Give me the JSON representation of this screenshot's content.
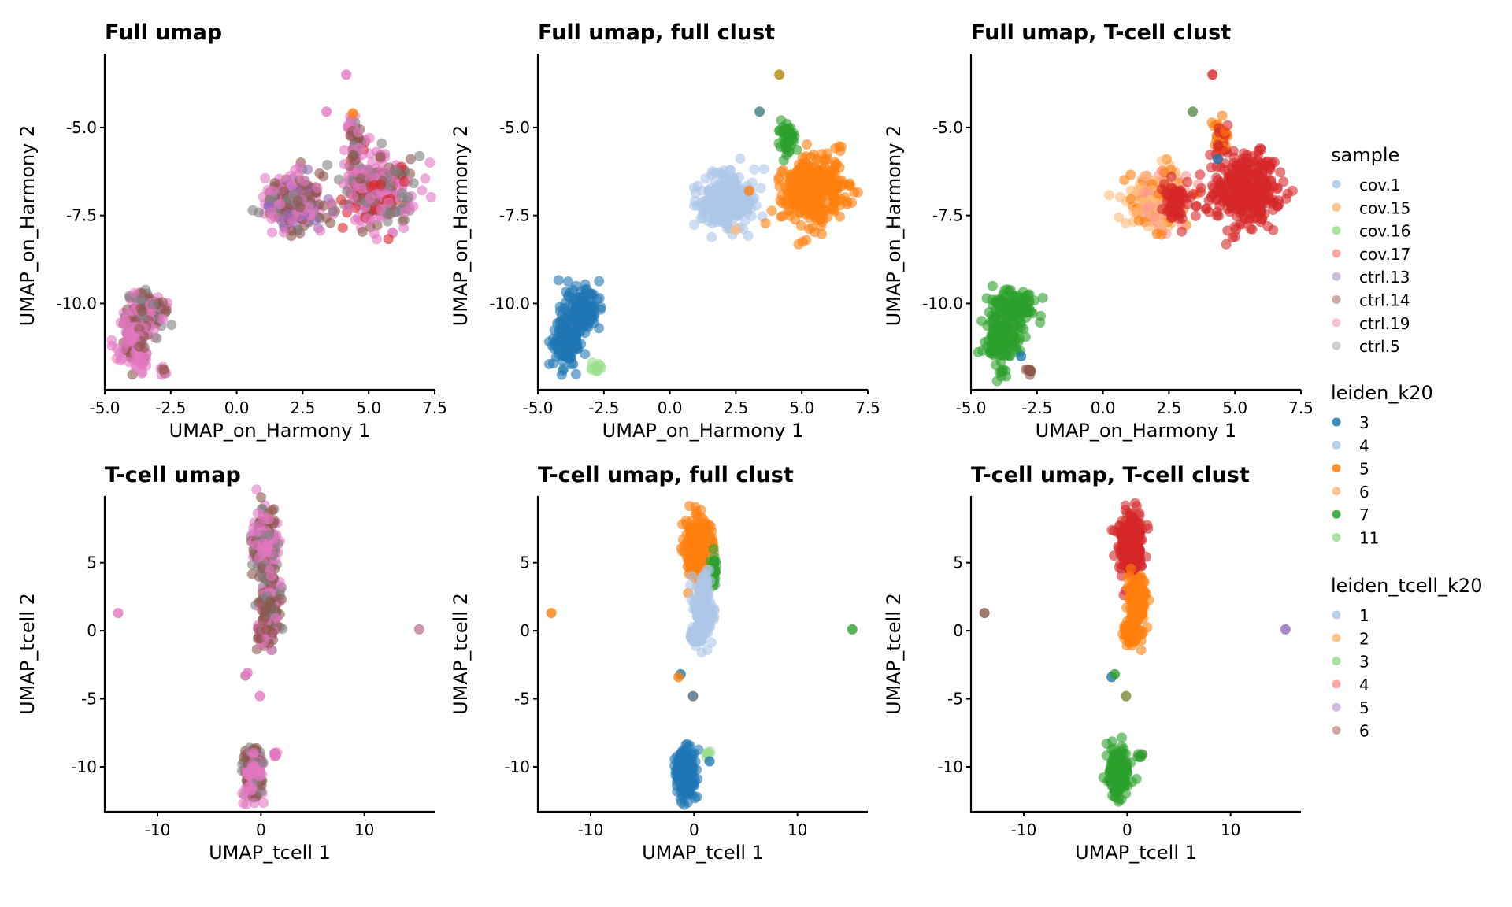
{
  "chart_data": {
    "type": "scatter",
    "figure": "2x3 grid of UMAP scatter plots with shared legend on right",
    "legends": [
      {
        "title": "sample",
        "entries": [
          {
            "label": "cov.1",
            "color": "#aec7e8"
          },
          {
            "label": "cov.15",
            "color": "#ffbb78"
          },
          {
            "label": "cov.16",
            "color": "#98df8a"
          },
          {
            "label": "cov.17",
            "color": "#ff9896"
          },
          {
            "label": "ctrl.13",
            "color": "#c5b0d5"
          },
          {
            "label": "ctrl.14",
            "color": "#c49c94"
          },
          {
            "label": "ctrl.19",
            "color": "#f7b6d2"
          },
          {
            "label": "ctrl.5",
            "color": "#c7c7c7"
          }
        ]
      },
      {
        "title": "leiden_k20",
        "entries": [
          {
            "label": "3",
            "color": "#1f77b4"
          },
          {
            "label": "4",
            "color": "#aec7e8"
          },
          {
            "label": "5",
            "color": "#ff7f0e"
          },
          {
            "label": "6",
            "color": "#ffbb78"
          },
          {
            "label": "7",
            "color": "#2ca02c"
          },
          {
            "label": "11",
            "color": "#98df8a"
          }
        ]
      },
      {
        "title": "leiden_tcell_k20",
        "entries": [
          {
            "label": "1",
            "color": "#aec7e8"
          },
          {
            "label": "2",
            "color": "#ffbb78"
          },
          {
            "label": "3",
            "color": "#98df8a"
          },
          {
            "label": "4",
            "color": "#ff9896"
          },
          {
            "label": "5",
            "color": "#c5b0d5"
          },
          {
            "label": "6",
            "color": "#c49c94"
          }
        ]
      }
    ],
    "panels": [
      {
        "title": "Full umap",
        "xlabel": "UMAP_on_Harmony 1",
        "ylabel": "UMAP_on_Harmony 2",
        "xlim": [
          -5.0,
          7.5
        ],
        "ylim": [
          -12.45,
          -2.9
        ],
        "xticks": [
          "-5.0",
          "-2.5",
          "0.0",
          "2.5",
          "5.0",
          "7.5"
        ],
        "xtick_values": [
          -5.0,
          -2.5,
          0.0,
          2.5,
          5.0,
          7.5
        ],
        "yticks": [
          "-5.0",
          "-7.5",
          "-10.0"
        ],
        "ytick_values": [
          -5.0,
          -7.5,
          -10.0
        ],
        "color_by": "sample",
        "clusters": [
          {
            "name": "left-blob",
            "cx": 2.2,
            "cy": -7.1,
            "sx": 0.55,
            "sy": 0.38,
            "n": 260,
            "colors": [
              "#8c564b",
              "#e377c2",
              "#7f7f7f",
              "#9467bd",
              "#e377c2",
              "#8c564b"
            ]
          },
          {
            "name": "right-blob",
            "cx": 5.3,
            "cy": -6.8,
            "sx": 0.65,
            "sy": 0.5,
            "n": 320,
            "colors": [
              "#8c564b",
              "#e377c2",
              "#e377c2",
              "#7f7f7f",
              "#e377c2",
              "#d62728"
            ]
          },
          {
            "name": "top-spur",
            "cx": 4.45,
            "cy": -5.3,
            "sx": 0.15,
            "sy": 0.3,
            "n": 40,
            "colors": [
              "#8c564b",
              "#e377c2",
              "#7f7f7f"
            ]
          },
          {
            "name": "bottom-blob-top",
            "cx": -3.4,
            "cy": -10.2,
            "sx": 0.4,
            "sy": 0.3,
            "n": 140,
            "colors": [
              "#e377c2",
              "#8c564b",
              "#e377c2",
              "#7f7f7f"
            ]
          },
          {
            "name": "bottom-blob-mid",
            "cx": -3.9,
            "cy": -11.1,
            "sx": 0.3,
            "sy": 0.35,
            "n": 120,
            "colors": [
              "#8c564b",
              "#e377c2",
              "#e377c2"
            ]
          },
          {
            "name": "bottom-tail",
            "cx": -2.8,
            "cy": -11.9,
            "sx": 0.08,
            "sy": 0.06,
            "n": 8,
            "colors": [
              "#e377c2",
              "#8c564b"
            ]
          }
        ],
        "outliers": [
          {
            "x": 4.15,
            "y": -3.5,
            "color": "#e377c2"
          },
          {
            "x": 3.4,
            "y": -4.55,
            "color": "#e377c2"
          },
          {
            "x": 4.4,
            "y": -4.6,
            "color": "#ff7f0e"
          }
        ]
      },
      {
        "title": "Full umap, full clust",
        "xlabel": "UMAP_on_Harmony 1",
        "ylabel": "UMAP_on_Harmony 2",
        "xlim": [
          -5.0,
          7.5
        ],
        "ylim": [
          -12.45,
          -2.9
        ],
        "xticks": [
          "-5.0",
          "-2.5",
          "0.0",
          "2.5",
          "5.0",
          "7.5"
        ],
        "xtick_values": [
          -5.0,
          -2.5,
          0.0,
          2.5,
          5.0,
          7.5
        ],
        "yticks": [
          "-5.0",
          "-7.5",
          "-10.0"
        ],
        "ytick_values": [
          -5.0,
          -7.5,
          -10.0
        ],
        "color_by": "leiden_k20",
        "clusters": [
          {
            "name": "cluster-4",
            "cx": 2.2,
            "cy": -7.1,
            "sx": 0.55,
            "sy": 0.38,
            "n": 260,
            "colors": [
              "#aec7e8"
            ]
          },
          {
            "name": "cluster-5",
            "cx": 5.4,
            "cy": -6.8,
            "sx": 0.6,
            "sy": 0.5,
            "n": 320,
            "colors": [
              "#ff7f0e"
            ]
          },
          {
            "name": "cluster-7",
            "cx": 4.45,
            "cy": -5.3,
            "sx": 0.15,
            "sy": 0.3,
            "n": 45,
            "colors": [
              "#2ca02c"
            ]
          },
          {
            "name": "cluster-3a",
            "cx": -3.4,
            "cy": -10.2,
            "sx": 0.4,
            "sy": 0.3,
            "n": 140,
            "colors": [
              "#1f77b4"
            ]
          },
          {
            "name": "cluster-3b",
            "cx": -3.9,
            "cy": -11.1,
            "sx": 0.3,
            "sy": 0.35,
            "n": 120,
            "colors": [
              "#1f77b4"
            ]
          },
          {
            "name": "cluster-11",
            "cx": -2.8,
            "cy": -11.85,
            "sx": 0.1,
            "sy": 0.08,
            "n": 10,
            "colors": [
              "#98df8a"
            ]
          }
        ],
        "outliers": [
          {
            "x": 4.15,
            "y": -3.5,
            "color": "#b5860d"
          },
          {
            "x": 3.4,
            "y": -4.55,
            "color": "#3f7f7f"
          },
          {
            "x": 3.0,
            "y": -6.8,
            "color": "#ff7f0e"
          },
          {
            "x": 2.5,
            "y": -7.9,
            "color": "#ffbb78"
          }
        ]
      },
      {
        "title": "Full umap, T-cell clust",
        "xlabel": "UMAP_on_Harmony 1",
        "ylabel": "UMAP_on_Harmony 2",
        "xlim": [
          -5.0,
          7.5
        ],
        "ylim": [
          -12.45,
          -2.9
        ],
        "xticks": [
          "-5.0",
          "-2.5",
          "0.0",
          "2.5",
          "5.0",
          "7.5"
        ],
        "xtick_values": [
          -5.0,
          -2.5,
          0.0,
          2.5,
          5.0,
          7.5
        ],
        "yticks": [
          "-5.0",
          "-7.5",
          "-10.0"
        ],
        "ytick_values": [
          -5.0,
          -7.5,
          -10.0
        ],
        "color_by": "leiden_tcell_k20",
        "clusters": [
          {
            "name": "cluster-2",
            "cx": 2.0,
            "cy": -7.1,
            "sx": 0.55,
            "sy": 0.38,
            "n": 240,
            "colors": [
              "#ff9896",
              "#ff7f0e",
              "#ffbb78"
            ]
          },
          {
            "name": "cluster-4-left",
            "cx": 2.8,
            "cy": -7.1,
            "sx": 0.35,
            "sy": 0.35,
            "n": 60,
            "colors": [
              "#d62728"
            ]
          },
          {
            "name": "cluster-4",
            "cx": 5.4,
            "cy": -6.8,
            "sx": 0.6,
            "sy": 0.5,
            "n": 320,
            "colors": [
              "#d62728"
            ]
          },
          {
            "name": "spur",
            "cx": 4.45,
            "cy": -5.3,
            "sx": 0.15,
            "sy": 0.3,
            "n": 40,
            "colors": [
              "#d62728",
              "#ff7f0e"
            ]
          },
          {
            "name": "cluster-3a",
            "cx": -3.4,
            "cy": -10.2,
            "sx": 0.4,
            "sy": 0.3,
            "n": 140,
            "colors": [
              "#2ca02c"
            ]
          },
          {
            "name": "cluster-3b",
            "cx": -3.9,
            "cy": -11.1,
            "sx": 0.3,
            "sy": 0.35,
            "n": 120,
            "colors": [
              "#2ca02c"
            ]
          },
          {
            "name": "cluster-6",
            "cx": -2.75,
            "cy": -11.9,
            "sx": 0.07,
            "sy": 0.06,
            "n": 8,
            "colors": [
              "#8c564b"
            ]
          }
        ],
        "outliers": [
          {
            "x": 4.15,
            "y": -3.5,
            "color": "#d62728"
          },
          {
            "x": 3.4,
            "y": -4.55,
            "color": "#5a8a4a"
          },
          {
            "x": 4.35,
            "y": -5.9,
            "color": "#1f77b4"
          },
          {
            "x": -3.1,
            "y": -11.5,
            "color": "#1f77b4"
          }
        ]
      },
      {
        "title": "T-cell umap",
        "xlabel": "UMAP_tcell 1",
        "ylabel": "UMAP_tcell 2",
        "xlim": [
          -15.1,
          16.8
        ],
        "ylim": [
          -13.3,
          9.9
        ],
        "xticks": [
          "-10",
          "0",
          "10"
        ],
        "xtick_values": [
          -10,
          0,
          10
        ],
        "yticks": [
          "5",
          "0",
          "-5",
          "-10"
        ],
        "ytick_values": [
          5,
          0,
          -5,
          -10
        ],
        "color_by": "sample",
        "clusters": [
          {
            "name": "top-arm",
            "cx": 0.4,
            "cy": 6.3,
            "sx": 0.55,
            "sy": 1.2,
            "n": 260,
            "colors": [
              "#e377c2",
              "#e377c2",
              "#8c564b",
              "#7f7f7f"
            ]
          },
          {
            "name": "mid-arm",
            "cx": 0.9,
            "cy": 1.8,
            "sx": 0.45,
            "sy": 1.1,
            "n": 160,
            "colors": [
              "#8c564b",
              "#8c564b",
              "#e377c2",
              "#7f7f7f"
            ]
          },
          {
            "name": "lower-arm",
            "cx": 0.2,
            "cy": -0.3,
            "sx": 0.35,
            "sy": 0.4,
            "n": 60,
            "colors": [
              "#8c564b",
              "#e377c2"
            ]
          },
          {
            "name": "bottom-blob",
            "cx": -0.8,
            "cy": -10.4,
            "sx": 0.45,
            "sy": 0.9,
            "n": 220,
            "colors": [
              "#e377c2",
              "#e377c2",
              "#8c564b",
              "#7f7f7f"
            ]
          },
          {
            "name": "bottom-side",
            "cx": 1.4,
            "cy": -9.3,
            "sx": 0.15,
            "sy": 0.2,
            "n": 8,
            "colors": [
              "#e377c2"
            ]
          }
        ],
        "outliers": [
          {
            "x": -13.8,
            "y": 1.3,
            "color": "#e377c2"
          },
          {
            "x": 15.3,
            "y": 0.1,
            "color": "#c07a9a"
          },
          {
            "x": -1.5,
            "y": -3.3,
            "color": "#c07a9a"
          },
          {
            "x": -1.3,
            "y": -3.1,
            "color": "#e377c2"
          },
          {
            "x": -0.1,
            "y": -4.8,
            "color": "#e377c2"
          }
        ]
      },
      {
        "title": "T-cell umap, full clust",
        "xlabel": "UMAP_tcell 1",
        "ylabel": "UMAP_tcell 2",
        "xlim": [
          -15.1,
          16.8
        ],
        "ylim": [
          -13.3,
          9.9
        ],
        "xticks": [
          "-10",
          "0",
          "10"
        ],
        "xtick_values": [
          -10,
          0,
          10
        ],
        "yticks": [
          "5",
          "0",
          "-5",
          "-10"
        ],
        "ytick_values": [
          5,
          0,
          -5,
          -10
        ],
        "color_by": "leiden_k20",
        "clusters": [
          {
            "name": "cluster-5",
            "cx": 0.4,
            "cy": 6.3,
            "sx": 0.55,
            "sy": 1.2,
            "n": 260,
            "colors": [
              "#ff7f0e"
            ]
          },
          {
            "name": "cluster-7",
            "cx": 1.9,
            "cy": 4.6,
            "sx": 0.15,
            "sy": 0.6,
            "n": 30,
            "colors": [
              "#2ca02c"
            ]
          },
          {
            "name": "cluster-4",
            "cx": 0.9,
            "cy": 1.8,
            "sx": 0.45,
            "sy": 1.1,
            "n": 160,
            "colors": [
              "#aec7e8"
            ]
          },
          {
            "name": "cluster-4-lower",
            "cx": 0.2,
            "cy": -0.3,
            "sx": 0.35,
            "sy": 0.4,
            "n": 60,
            "colors": [
              "#aec7e8"
            ]
          },
          {
            "name": "cluster-3",
            "cx": -0.8,
            "cy": -10.4,
            "sx": 0.45,
            "sy": 0.9,
            "n": 220,
            "colors": [
              "#1f77b4"
            ]
          },
          {
            "name": "cluster-11",
            "cx": 1.3,
            "cy": -9.1,
            "sx": 0.15,
            "sy": 0.15,
            "n": 6,
            "colors": [
              "#98df8a"
            ]
          }
        ],
        "outliers": [
          {
            "x": -13.8,
            "y": 1.3,
            "color": "#ff7f0e"
          },
          {
            "x": 15.3,
            "y": 0.1,
            "color": "#2ca02c"
          },
          {
            "x": -1.3,
            "y": -3.2,
            "color": "#1f77b4"
          },
          {
            "x": -1.5,
            "y": -3.4,
            "color": "#ff7f0e"
          },
          {
            "x": -0.1,
            "y": -4.8,
            "color": "#4a6a80"
          },
          {
            "x": 1.5,
            "y": -9.6,
            "color": "#1f77b4"
          }
        ]
      },
      {
        "title": "T-cell umap, T-cell clust",
        "xlabel": "UMAP_tcell 1",
        "ylabel": "UMAP_tcell 2",
        "xlim": [
          -15.1,
          16.8
        ],
        "ylim": [
          -13.3,
          9.9
        ],
        "xticks": [
          "-10",
          "0",
          "10"
        ],
        "xtick_values": [
          -10,
          0,
          10
        ],
        "yticks": [
          "5",
          "0",
          "-5",
          "-10"
        ],
        "ytick_values": [
          5,
          0,
          -5,
          -10
        ],
        "color_by": "leiden_tcell_k20",
        "clusters": [
          {
            "name": "cluster-4",
            "cx": 0.4,
            "cy": 6.3,
            "sx": 0.55,
            "sy": 1.2,
            "n": 260,
            "colors": [
              "#d62728"
            ]
          },
          {
            "name": "cluster-2",
            "cx": 0.9,
            "cy": 1.8,
            "sx": 0.45,
            "sy": 1.1,
            "n": 160,
            "colors": [
              "#ff7f0e"
            ]
          },
          {
            "name": "cluster-2-lower",
            "cx": 0.2,
            "cy": -0.3,
            "sx": 0.35,
            "sy": 0.4,
            "n": 60,
            "colors": [
              "#ff7f0e"
            ]
          },
          {
            "name": "cluster-3",
            "cx": -0.8,
            "cy": -10.4,
            "sx": 0.45,
            "sy": 0.9,
            "n": 220,
            "colors": [
              "#2ca02c"
            ]
          },
          {
            "name": "cluster-6-side",
            "cx": 1.3,
            "cy": -9.2,
            "sx": 0.15,
            "sy": 0.15,
            "n": 6,
            "colors": [
              "#8c564b",
              "#2ca02c"
            ]
          }
        ],
        "outliers": [
          {
            "x": -13.8,
            "y": 1.3,
            "color": "#8c564b"
          },
          {
            "x": 15.3,
            "y": 0.1,
            "color": "#9467bd"
          },
          {
            "x": -1.5,
            "y": -3.4,
            "color": "#1f77b4"
          },
          {
            "x": -1.2,
            "y": -3.2,
            "color": "#2ca02c"
          },
          {
            "x": -0.1,
            "y": -4.8,
            "color": "#7a8a30"
          }
        ]
      }
    ]
  }
}
